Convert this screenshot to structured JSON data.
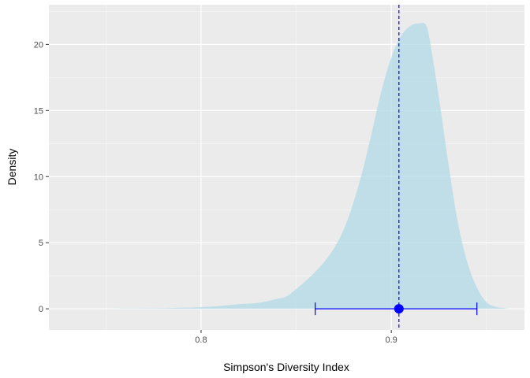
{
  "chart_data": {
    "type": "area",
    "title": "",
    "xlabel": "Simpson's Diversity Index",
    "ylabel": "Density",
    "xlim": [
      0.72,
      0.97
    ],
    "ylim": [
      -1.6,
      23.0
    ],
    "x_ticks": [
      0.8,
      0.9
    ],
    "x_tick_labels": [
      "0.8",
      "0.9"
    ],
    "y_ticks": [
      0,
      5,
      10,
      15,
      20
    ],
    "y_tick_labels": [
      "0",
      "5",
      "10",
      "15",
      "20"
    ],
    "grid": true,
    "legend": "none",
    "density": {
      "x": [
        0.75,
        0.76,
        0.77,
        0.78,
        0.79,
        0.8,
        0.81,
        0.82,
        0.83,
        0.84,
        0.845,
        0.85,
        0.855,
        0.86,
        0.865,
        0.87,
        0.875,
        0.88,
        0.885,
        0.89,
        0.895,
        0.9,
        0.905,
        0.91,
        0.915,
        0.918,
        0.92,
        0.925,
        0.93,
        0.935,
        0.94,
        0.945,
        0.95,
        0.955,
        0.96,
        0.963
      ],
      "y": [
        0.0,
        0.02,
        0.03,
        0.04,
        0.08,
        0.13,
        0.22,
        0.35,
        0.45,
        0.75,
        0.95,
        1.5,
        2.1,
        2.8,
        3.6,
        4.6,
        6.0,
        8.0,
        10.5,
        13.5,
        16.6,
        19.0,
        20.6,
        21.4,
        21.6,
        21.5,
        20.5,
        16.0,
        11.0,
        6.5,
        3.5,
        1.6,
        0.5,
        0.15,
        0.04,
        0.0
      ],
      "fill_color": "#add8e6"
    },
    "mean_line": {
      "x": 0.904,
      "color": "#0000ff"
    },
    "point_estimate": {
      "x": 0.904,
      "y": 0.0,
      "color": "#0000ff"
    },
    "interval": {
      "low": 0.86,
      "high": 0.945,
      "y": 0.0,
      "color": "#0000ff"
    }
  }
}
